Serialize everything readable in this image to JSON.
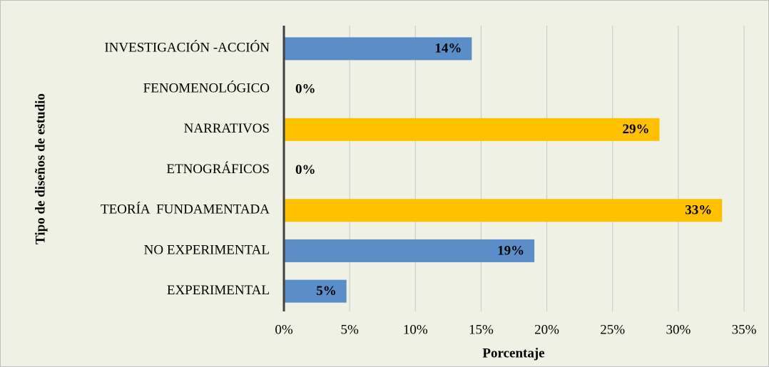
{
  "chart_data": {
    "type": "barh",
    "categories": [
      "INVESTIGACIÓN -ACCIÓN",
      "FENOMENOLÓGICO",
      "NARRATIVOS",
      "ETNOGRÁFICOS",
      "TEORÍA  FUNDAMENTADA",
      "NO EXPERIMENTAL",
      "EXPERIMENTAL"
    ],
    "values": [
      14.29,
      0,
      28.57,
      0,
      33.33,
      19.05,
      4.76
    ],
    "value_labels": [
      "14%",
      "0%",
      "29%",
      "0%",
      "33%",
      "19%",
      "5%"
    ],
    "colors": [
      "#5b8ec9",
      "#5b8ec9",
      "#ffc000",
      "#5b8ec9",
      "#ffc000",
      "#5b8ec9",
      "#5b8ec9"
    ],
    "xlim": [
      0,
      35
    ],
    "xticks": [
      {
        "value": 0,
        "label": "0%"
      },
      {
        "value": 5,
        "label": "5%"
      },
      {
        "value": 10,
        "label": "10%"
      },
      {
        "value": 15,
        "label": "15%"
      },
      {
        "value": 20,
        "label": "20%"
      },
      {
        "value": 25,
        "label": "25%"
      },
      {
        "value": 30,
        "label": "30%"
      },
      {
        "value": 35,
        "label": "35%"
      }
    ],
    "grid": true,
    "xlabel": "Porcentaje",
    "ylabel": "Tipo de diseños de estudio"
  }
}
